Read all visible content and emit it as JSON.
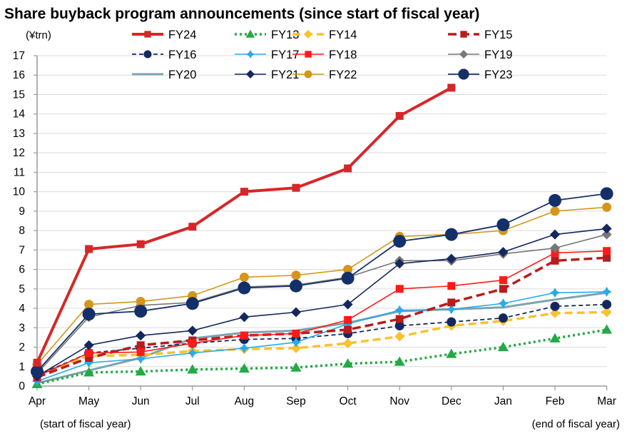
{
  "chart_data": {
    "type": "line",
    "title": "Share buyback program announcements (since start of fiscal year)",
    "ylabel": "(¥trn)",
    "xlabel_start": "(start of fiscal year)",
    "xlabel_end": "(end of fiscal year)",
    "categories": [
      "Apr",
      "May",
      "Jun",
      "Jul",
      "Aug",
      "Sep",
      "Oct",
      "Nov",
      "Dec",
      "Jan",
      "Feb",
      "Mar"
    ],
    "ylim": [
      0,
      17
    ],
    "yticks": [
      0,
      1,
      2,
      3,
      4,
      5,
      6,
      7,
      8,
      9,
      10,
      11,
      12,
      13,
      14,
      15,
      16,
      17
    ],
    "grid": true,
    "legend_position": "top",
    "series": [
      {
        "name": "FY24",
        "color": "#d62728",
        "dash": "solid",
        "marker": "square",
        "values": [
          1.2,
          7.05,
          7.3,
          8.2,
          10.0,
          10.2,
          11.2,
          13.9,
          15.35,
          null,
          null,
          null
        ]
      },
      {
        "name": "FY13",
        "color": "#22aa44",
        "dash": "dotted",
        "marker": "triangle",
        "values": [
          0.1,
          0.7,
          0.75,
          0.85,
          0.9,
          0.95,
          1.15,
          1.25,
          1.65,
          2.0,
          2.45,
          2.9
        ]
      },
      {
        "name": "FY14",
        "color": "#f9c22e",
        "dash": "dashed",
        "marker": "diamond",
        "values": [
          0.6,
          1.55,
          1.6,
          1.8,
          1.9,
          1.95,
          2.2,
          2.55,
          3.1,
          3.35,
          3.75,
          3.8
        ]
      },
      {
        "name": "FY15",
        "color": "#b81c1c",
        "dash": "longdash",
        "marker": "square",
        "values": [
          0.45,
          1.45,
          2.1,
          2.35,
          2.6,
          2.7,
          2.9,
          3.45,
          4.3,
          5.0,
          6.45,
          6.6
        ]
      },
      {
        "name": "FY16",
        "color": "#14285f",
        "dash": "shortdash",
        "marker": "circle",
        "values": [
          0.55,
          1.7,
          1.95,
          2.2,
          2.4,
          2.45,
          2.7,
          3.1,
          3.3,
          3.5,
          4.1,
          4.2
        ]
      },
      {
        "name": "FY17",
        "color": "#29aaea",
        "dash": "solid",
        "marker": "star",
        "values": [
          0.25,
          1.2,
          1.4,
          1.7,
          1.95,
          2.25,
          3.2,
          3.9,
          3.95,
          4.25,
          4.8,
          4.85
        ]
      },
      {
        "name": "FY18",
        "color": "#ff1a1a",
        "dash": "solid",
        "marker": "square",
        "values": [
          0.5,
          1.7,
          1.75,
          2.2,
          2.6,
          2.7,
          3.4,
          5.0,
          5.15,
          5.45,
          6.85,
          6.95
        ]
      },
      {
        "name": "FY19",
        "color": "#777777",
        "dash": "solid",
        "marker": "diamond",
        "values": [
          0.65,
          3.55,
          4.15,
          4.3,
          5.1,
          5.2,
          5.6,
          6.45,
          6.45,
          6.8,
          7.1,
          7.8
        ]
      },
      {
        "name": "FY20",
        "color": "#7ea3ad",
        "dash": "solid",
        "marker": "none",
        "values": [
          0.15,
          0.8,
          1.45,
          2.45,
          2.75,
          2.85,
          3.25,
          3.85,
          3.95,
          4.05,
          4.45,
          4.8
        ]
      },
      {
        "name": "FY21",
        "color": "#14285f",
        "dash": "solid",
        "marker": "diamond",
        "values": [
          0.5,
          2.1,
          2.6,
          2.85,
          3.55,
          3.8,
          4.2,
          6.3,
          6.55,
          6.9,
          7.8,
          8.1
        ]
      },
      {
        "name": "FY22",
        "color": "#d4961c",
        "dash": "solid",
        "marker": "circle",
        "values": [
          1.1,
          4.2,
          4.35,
          4.65,
          5.6,
          5.7,
          6.0,
          7.7,
          7.8,
          8.0,
          9.0,
          9.2
        ]
      },
      {
        "name": "FY23",
        "color": "#14306a",
        "dash": "solid",
        "marker": "bigcircle",
        "values": [
          0.75,
          3.7,
          3.85,
          4.25,
          5.05,
          5.15,
          5.55,
          7.45,
          7.8,
          8.3,
          9.55,
          9.9
        ]
      }
    ]
  }
}
